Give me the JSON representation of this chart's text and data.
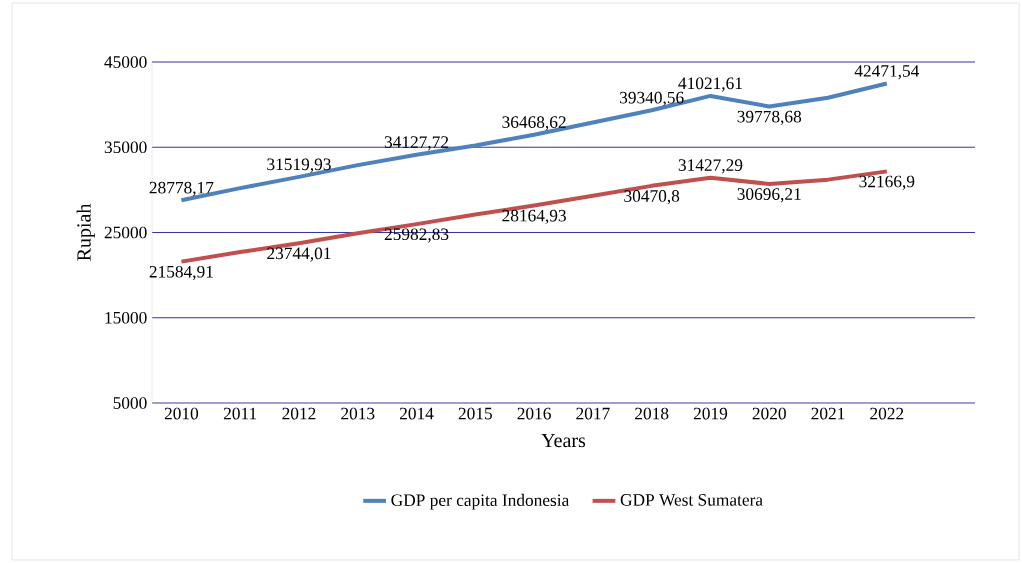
{
  "chart_data": {
    "type": "line",
    "xlabel": "Years",
    "ylabel": "Rupiah",
    "categories": [
      "2010",
      "2011",
      "2012",
      "2013",
      "2014",
      "2015",
      "2016",
      "2017",
      "2018",
      "2019",
      "2020",
      "2021",
      "2022"
    ],
    "series": [
      {
        "name": "GDP per capita Indonesia",
        "color": "#4f81bd",
        "values": [
          28778.17,
          30200,
          31519.93,
          32900,
          34127.72,
          35200,
          36468.62,
          37900,
          39340.56,
          41021.61,
          39778.68,
          40800,
          42471.54
        ],
        "value_labels": [
          "28778,17",
          null,
          "31519,93",
          null,
          "34127,72",
          null,
          "36468,62",
          null,
          "39340,56",
          "41021,61",
          "39778,68",
          null,
          "42471,54"
        ]
      },
      {
        "name": "GDP West Sumatera",
        "color": "#c0504d",
        "values": [
          21584.91,
          22700,
          23744.01,
          24900,
          25982.83,
          27100,
          28164.93,
          29300,
          30470.8,
          31427.29,
          30696.21,
          31200,
          32166.9
        ],
        "value_labels": [
          "21584,91",
          null,
          "23744,01",
          null,
          "25982,83",
          null,
          "28164,93",
          null,
          "30470,8",
          "31427,29",
          "30696,21",
          null,
          "32166,9"
        ]
      }
    ],
    "ylim": [
      5000,
      45000
    ],
    "yticks": [
      5000,
      15000,
      25000,
      35000,
      45000
    ],
    "grid": "y",
    "legend": "bottom",
    "marker": "none",
    "line_style": "solid"
  }
}
